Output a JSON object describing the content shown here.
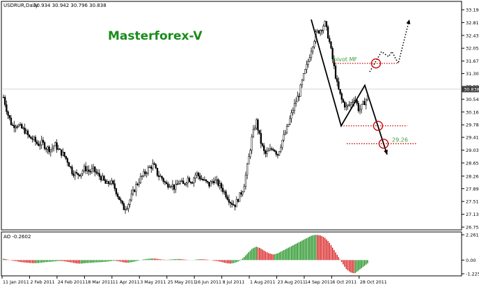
{
  "chart_data": [
    {
      "type": "candlestick",
      "symbol_header": "USDRUR,Daily",
      "ohlc_header": "30.934 30.942 30.796 30.838",
      "watermark": "Masterforex-V",
      "last_price_label": "30.838",
      "y_ticks": [
        "33.190",
        "32.810",
        "32.430",
        "32.050",
        "31.670",
        "31.300",
        "30.920",
        "30.540",
        "30.160",
        "29.780",
        "29.410",
        "29.030",
        "28.650",
        "28.260",
        "27.890",
        "27.510",
        "27.130",
        "26.750"
      ],
      "ylim": [
        26.75,
        33.19
      ],
      "x_tick_labels": [
        "11 Jan 2011",
        "2 Feb 2011",
        "24 Feb 2011",
        "18 Mar 2011",
        "11 Apr 2011",
        "3 May 2011",
        "25 May 2011",
        "16 Jun 2011",
        "8 Jul 2011",
        "1 Aug 2011",
        "23 Aug 2011",
        "14 Sep 2011",
        "6 Oct 2011",
        "28 Oct 2011"
      ],
      "price_path": [
        30.6,
        30.1,
        29.75,
        29.8,
        29.7,
        29.6,
        29.4,
        29.35,
        29.2,
        29.25,
        29.1,
        29.05,
        29.2,
        29.0,
        28.9,
        28.7,
        28.4,
        28.3,
        28.35,
        28.5,
        28.4,
        28.45,
        28.3,
        28.2,
        28.0,
        28.1,
        27.9,
        27.6,
        27.3,
        27.4,
        27.7,
        28.0,
        28.2,
        28.35,
        28.5,
        28.6,
        28.3,
        28.2,
        28.0,
        28.05,
        27.9,
        28.1,
        28.0,
        28.2,
        28.1,
        28.35,
        28.2,
        28.1,
        28.0,
        28.15,
        28.05,
        27.9,
        27.7,
        27.5,
        27.4,
        27.65,
        27.9,
        28.6,
        29.4,
        29.9,
        29.3,
        28.9,
        29.0,
        29.1,
        28.9,
        29.3,
        29.6,
        30.0,
        30.4,
        30.7,
        31.2,
        31.6,
        32.1,
        32.5,
        32.6,
        32.8,
        32.3,
        31.6,
        30.9,
        30.5,
        30.3,
        30.4,
        30.6,
        30.2,
        30.4,
        30.6
      ],
      "annotations": [
        {
          "text": "pivot MF",
          "price": 31.6
        },
        {
          "text": "29.26",
          "price": 29.22
        }
      ],
      "levels": [
        31.6,
        29.75,
        29.22
      ],
      "indicator": {
        "name": "AO",
        "header": "AO -0.2602",
        "y_ticks": [
          "2.2614",
          "0.00",
          "-1.2253"
        ],
        "ylim": [
          -1.2253,
          2.2614
        ],
        "values": [
          0.12,
          0.05,
          -0.05,
          -0.1,
          -0.18,
          -0.22,
          -0.25,
          -0.28,
          -0.27,
          -0.22,
          -0.18,
          -0.15,
          -0.12,
          -0.08,
          -0.1,
          -0.16,
          -0.22,
          -0.3,
          -0.32,
          -0.28,
          -0.25,
          -0.22,
          -0.2,
          -0.18,
          -0.15,
          -0.1,
          -0.06,
          -0.12,
          -0.2,
          -0.25,
          -0.18,
          -0.1,
          0.0,
          0.08,
          0.12,
          0.15,
          0.1,
          0.05,
          0.02,
          0.05,
          0.08,
          0.1,
          0.06,
          0.02,
          -0.02,
          0.05,
          0.08,
          0.06,
          0.02,
          -0.05,
          -0.1,
          -0.18,
          -0.28,
          -0.32,
          -0.25,
          -0.1,
          0.2,
          0.6,
          1.0,
          1.2,
          1.05,
          0.8,
          0.6,
          0.5,
          0.6,
          0.8,
          1.0,
          1.2,
          1.4,
          1.6,
          1.8,
          2.0,
          2.2,
          2.26,
          2.2,
          2.0,
          1.6,
          1.0,
          0.4,
          -0.2,
          -0.8,
          -1.1,
          -1.2,
          -0.9,
          -0.6,
          -0.3
        ]
      }
    }
  ],
  "colors": {
    "bull": "#008000",
    "bear": "#d40000",
    "candle": "#000000",
    "watermark": "#1a8c1a",
    "level_line": "#cc0000",
    "circle": "#cc0000",
    "annotation_text": "#3a9a3a",
    "price_label_bg": "#3c3c3c"
  }
}
